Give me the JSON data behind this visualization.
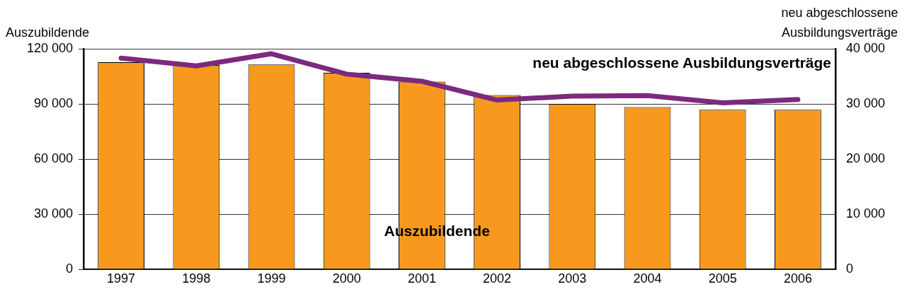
{
  "chart_data": {
    "type": "bar",
    "categories": [
      "1997",
      "1998",
      "1999",
      "2000",
      "2001",
      "2002",
      "2003",
      "2004",
      "2005",
      "2006"
    ],
    "ylabel": "Auszubildende",
    "y2label": "neu abgeschlossene Ausbildungsverträge",
    "series": [
      {
        "name": "Auszubildende",
        "color": "#f7991e",
        "values": [
          112700,
          111200,
          111400,
          106900,
          102100,
          94800,
          90000,
          88300,
          86800,
          86800
        ]
      },
      {
        "name": "neu abgeschlossene Ausbildungsverträge",
        "type": "line",
        "axis": "y2",
        "color": "#7b2a7e",
        "values": [
          38300,
          36900,
          39100,
          35400,
          34100,
          30700,
          31400,
          31500,
          30200,
          30800
        ]
      }
    ],
    "ylim": [
      0,
      120000
    ],
    "yticks": [
      {
        "value": 0,
        "label": "0"
      },
      {
        "value": 30000,
        "label": "30 000"
      },
      {
        "value": 60000,
        "label": "60 000"
      },
      {
        "value": 90000,
        "label": "90 000"
      },
      {
        "value": 120000,
        "label": "120 000"
      }
    ],
    "y2lim": [
      0,
      40000
    ],
    "y2ticks": [
      {
        "value": 0,
        "label": "0"
      },
      {
        "value": 10000,
        "label": "10 000"
      },
      {
        "value": 20000,
        "label": "20 000"
      },
      {
        "value": 30000,
        "label": "30 000"
      },
      {
        "value": 40000,
        "label": "40 000"
      }
    ],
    "grid": "y",
    "legend": false,
    "marker": "none",
    "line_style": "solid"
  }
}
